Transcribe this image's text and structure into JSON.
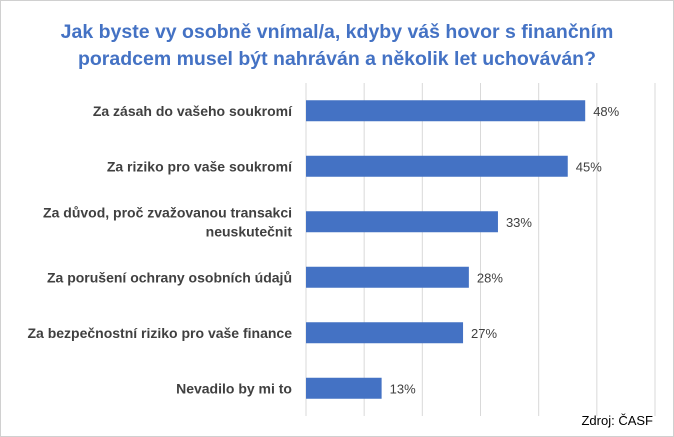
{
  "chart_data": {
    "type": "bar",
    "orientation": "horizontal",
    "title": "Jak byste vy osobně vnímal/a, kdyby váš hovor s finančním\nporadcem musel být nahráván a několik let uchováván?",
    "categories": [
      [
        "Za zásah do vašeho soukromí"
      ],
      [
        "Za riziko pro vaše soukromí"
      ],
      [
        "Za důvod, proč zvažovanou transakci",
        "neuskutečnit"
      ],
      [
        "Za porušení ochrany osobních údajů"
      ],
      [
        "Za bezpečnostní riziko pro vaše finance"
      ],
      [
        "Nevadilo by mi to"
      ]
    ],
    "values": [
      48,
      45,
      33,
      28,
      27,
      13
    ],
    "value_labels": [
      "48%",
      "45%",
      "33%",
      "28%",
      "27%",
      "13%"
    ],
    "xlim": [
      0,
      60
    ],
    "grid": true,
    "bar_color": "#4472c4",
    "source": "Zdroj: ČASF"
  }
}
